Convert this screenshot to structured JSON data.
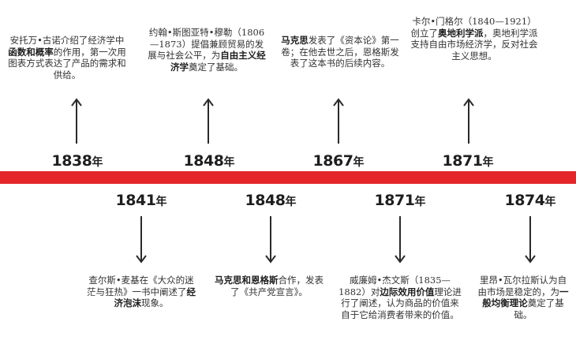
{
  "events": [
    {
      "year": "1838",
      "suffix": "年",
      "pre": "安托万•古诺介绍了经济学中",
      "bold": "函数和概率",
      "post": "的作用，第一次用图表方式表达了产品的需求和供给。"
    },
    {
      "year": "1848",
      "suffix": "年",
      "pre": "约翰•斯图亚特•穆勒（1806—1873）提倡兼顾贸易的发展与社会公平，为",
      "bold": "自由主义经济学",
      "post": "奠定了基础。"
    },
    {
      "year": "1867",
      "suffix": "年",
      "pre": "",
      "bold": "马克思",
      "post": "发表了《资本论》第一卷；在他去世之后，恩格斯发表了这本书的后续内容。"
    },
    {
      "year": "1871",
      "suffix": "年",
      "pre": "卡尔•门格尔（1840—1921）创立了",
      "bold": "奥地利学派",
      "post": "，奥地利学派支持自由市场经济学，反对社会主义思想。"
    },
    {
      "year": "1841",
      "suffix": "年",
      "pre": "查尔斯•麦基在《大众的迷茫与狂热》一书中阐述了",
      "bold": "经济泡沫",
      "post": "现象。"
    },
    {
      "year": "1848",
      "suffix": "年",
      "pre": "",
      "bold": "马克思和恩格斯",
      "post": "合作，发表了《共产党宣言》。"
    },
    {
      "year": "1871",
      "suffix": "年",
      "pre": "威廉姆•杰文斯（1835—1882）对",
      "bold": "边际效用价值",
      "post": "理论进行了阐述，认为商品的价值来自于它给消费者带来的价值。"
    },
    {
      "year": "1874",
      "suffix": "年",
      "pre": "里昂•瓦尔拉斯认为自由市场是稳定的，为",
      "bold": "一般均衡理论",
      "post": "奠定了基础。"
    }
  ]
}
